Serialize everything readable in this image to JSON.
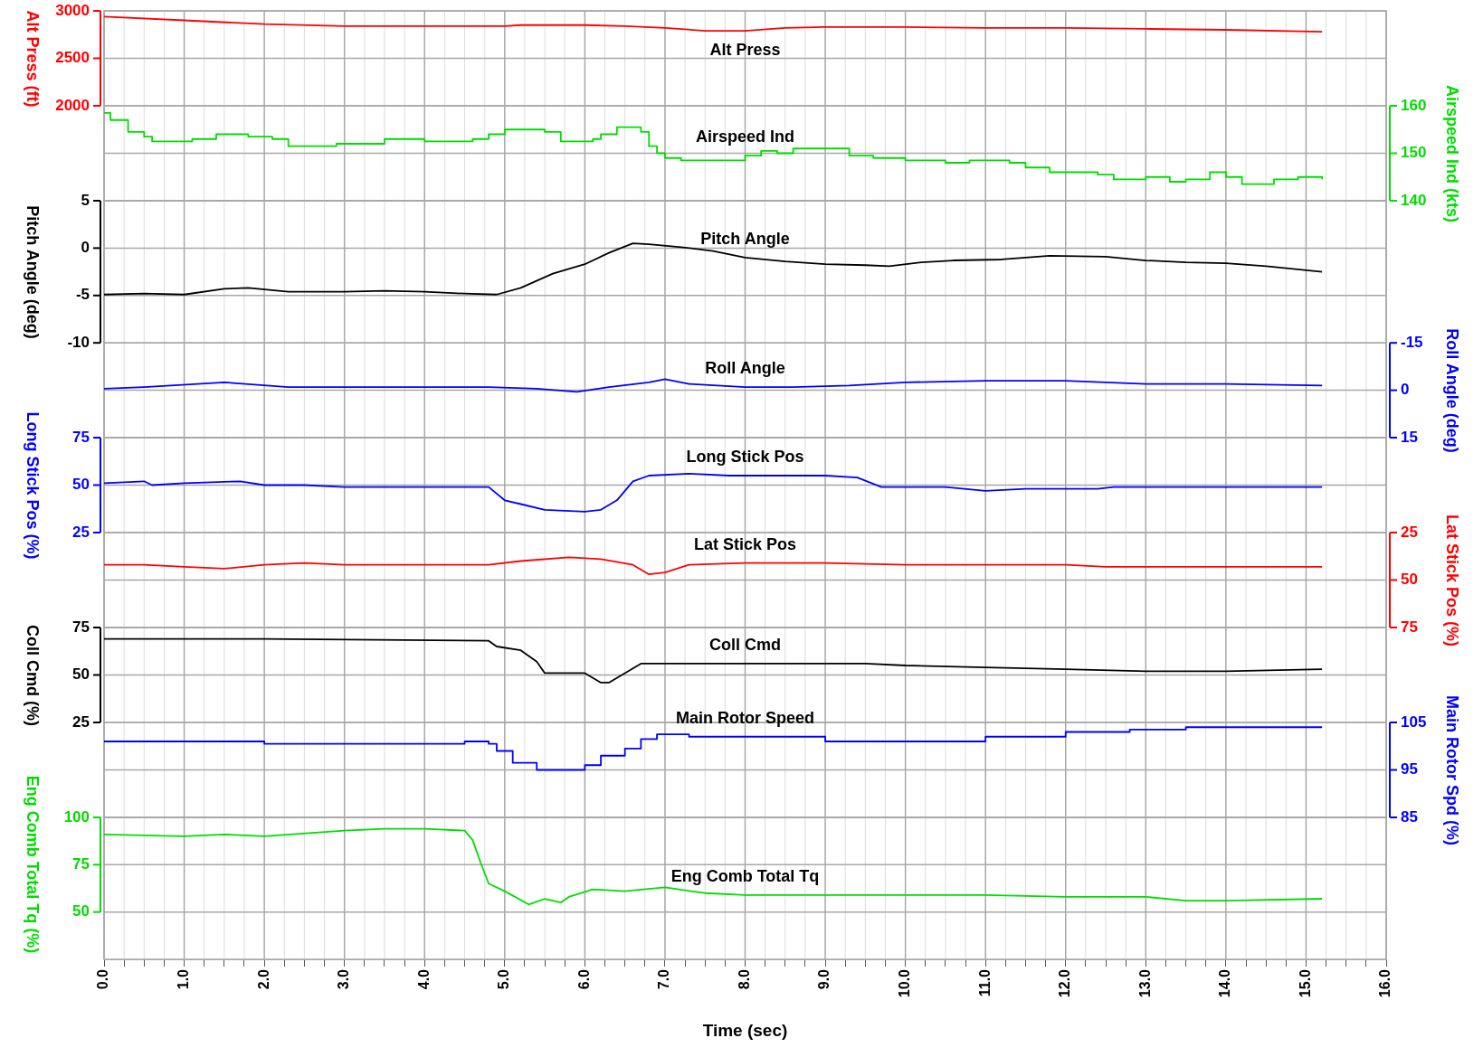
{
  "chart_data": [
    {
      "type": "line",
      "grid": true,
      "marker": "none",
      "tick_labels": "y",
      "xlim": [
        0,
        16
      ],
      "xticks": [
        0,
        0.25,
        0.5,
        0.75,
        1,
        1.25,
        1.5,
        1.75,
        2,
        2.25,
        2.5,
        2.75,
        3,
        3.25,
        3.5,
        3.75,
        4,
        4.25,
        4.5,
        4.75,
        5,
        5.25,
        5.5,
        5.75,
        6,
        6.25,
        6.5,
        6.75,
        7,
        7.25,
        7.5,
        7.75,
        8,
        8.25,
        8.5,
        8.75,
        9,
        9.25,
        9.5,
        9.75,
        10,
        10.25,
        10.5,
        10.75,
        11,
        11.25,
        11.5,
        11.75,
        12,
        12.25,
        12.5,
        12.75,
        13,
        13.25,
        13.5,
        13.75,
        14,
        14.25,
        14.5,
        14.75,
        15,
        15.25,
        15.5,
        15.75,
        16
      ],
      "ylabel": "Alt Press (ft)",
      "ylim": [
        1000,
        3000
      ],
      "yticks": [
        2000,
        2500,
        3000
      ],
      "y2label": "Airspeed Ind (kts)",
      "y2lim": [
        140,
        180
      ],
      "y2ticks": [
        140,
        150,
        160
      ],
      "series": [
        {
          "name": "Alt Press",
          "color": "#ff0000",
          "x": [
            0,
            1,
            2,
            3,
            4,
            5,
            5.2,
            6,
            6.5,
            7,
            7.5,
            8,
            8.5,
            9,
            10,
            11,
            12,
            13,
            14,
            15.2
          ],
          "values": [
            2940,
            2900,
            2860,
            2840,
            2840,
            2840,
            2850,
            2850,
            2840,
            2820,
            2790,
            2790,
            2820,
            2830,
            2830,
            2820,
            2820,
            2810,
            2800,
            2780
          ]
        },
        {
          "name": "Airspeed Ind",
          "color": "#00dd00",
          "axis": "y2",
          "type": "step",
          "x": [
            0,
            0.08,
            0.3,
            0.5,
            0.6,
            1.1,
            1.4,
            1.8,
            2.1,
            2.3,
            2.9,
            3.5,
            4,
            4.6,
            4.8,
            5,
            5.5,
            5.7,
            6.1,
            6.2,
            6.4,
            6.7,
            6.8,
            6.9,
            7,
            7.2,
            8,
            8.2,
            8.4,
            8.6,
            9.3,
            9.6,
            10,
            10.5,
            10.8,
            11.3,
            11.5,
            11.8,
            12,
            12.4,
            12.6,
            13,
            13.3,
            13.5,
            13.8,
            14,
            14.2,
            14.6,
            14.9,
            15.2
          ],
          "values": [
            158.5,
            157,
            154.5,
            153.5,
            152.5,
            153,
            154,
            153.5,
            153,
            151.5,
            152,
            153,
            152.5,
            153,
            154,
            155,
            154.5,
            152.5,
            153,
            154,
            155.5,
            154.5,
            151.5,
            150,
            149,
            148.5,
            149.5,
            150.5,
            150,
            151,
            149.5,
            149,
            148.5,
            148,
            148.5,
            148,
            147,
            146,
            146,
            145.5,
            144.5,
            145,
            144,
            144.5,
            146,
            145,
            143.5,
            144.5,
            145,
            144.5
          ]
        }
      ]
    },
    {
      "type": "line",
      "grid": true,
      "marker": "none",
      "tick_labels": "y",
      "xlim": [
        0,
        16
      ],
      "xticks": [
        0,
        0.25,
        0.5,
        0.75,
        1,
        1.25,
        1.5,
        1.75,
        2,
        2.25,
        2.5,
        2.75,
        3,
        3.25,
        3.5,
        3.75,
        4,
        4.25,
        4.5,
        4.75,
        5,
        5.25,
        5.5,
        5.75,
        6,
        6.25,
        6.5,
        6.75,
        7,
        7.25,
        7.5,
        7.75,
        8,
        8.25,
        8.5,
        8.75,
        9,
        9.25,
        9.5,
        9.75,
        10,
        10.25,
        10.5,
        10.75,
        11,
        11.25,
        11.5,
        11.75,
        12,
        12.25,
        12.5,
        12.75,
        13,
        13.25,
        13.5,
        13.75,
        14,
        14.25,
        14.5,
        14.75,
        15,
        15.25,
        15.5,
        15.75,
        16
      ],
      "ylabel": "Pitch Angle (deg)",
      "ylim": [
        -20,
        5
      ],
      "yticks": [
        -10,
        -5,
        0,
        5
      ],
      "y2label": "Roll Angle (deg)",
      "y2lim": [
        15,
        -60
      ],
      "y2ticks": [
        -15,
        0,
        15
      ],
      "series": [
        {
          "name": "Pitch Angle",
          "color": "#000000",
          "x": [
            0,
            0.5,
            1,
            1.5,
            1.8,
            2.3,
            3,
            3.5,
            4,
            4.5,
            4.9,
            5.2,
            5.6,
            6,
            6.3,
            6.6,
            6.8,
            7.2,
            7.6,
            8,
            8.5,
            9,
            9.5,
            9.8,
            10.2,
            10.6,
            11.2,
            11.8,
            12.5,
            13,
            13.5,
            14,
            14.5,
            15.2
          ],
          "values": [
            -4.9,
            -4.8,
            -4.9,
            -4.3,
            -4.2,
            -4.6,
            -4.6,
            -4.5,
            -4.6,
            -4.8,
            -4.9,
            -4.2,
            -2.7,
            -1.7,
            -0.5,
            0.5,
            0.4,
            0.1,
            -0.3,
            -1,
            -1.4,
            -1.7,
            -1.8,
            -1.9,
            -1.5,
            -1.3,
            -1.2,
            -0.8,
            -0.9,
            -1.3,
            -1.5,
            -1.6,
            -1.9,
            -2.5
          ]
        },
        {
          "name": "Roll Angle",
          "color": "#0000ff",
          "axis": "y2",
          "x": [
            0,
            0.5,
            1.5,
            2.3,
            3,
            4,
            4.8,
            5.4,
            5.9,
            6.3,
            6.8,
            7,
            7.3,
            8,
            8.6,
            9.3,
            10,
            11,
            12,
            13,
            14,
            15.2
          ],
          "values": [
            -0.5,
            -1,
            -2.5,
            -1,
            -1,
            -1,
            -1,
            -0.5,
            0.5,
            -1,
            -2.5,
            -3.5,
            -2,
            -1,
            -1,
            -1.5,
            -2.5,
            -3,
            -3,
            -2,
            -2,
            -1.5
          ]
        }
      ]
    },
    {
      "type": "line",
      "grid": true,
      "marker": "none",
      "tick_labels": "y",
      "xlim": [
        0,
        16
      ],
      "xticks": [
        0,
        0.25,
        0.5,
        0.75,
        1,
        1.25,
        1.5,
        1.75,
        2,
        2.25,
        2.5,
        2.75,
        3,
        3.25,
        3.5,
        3.75,
        4,
        4.25,
        4.5,
        4.75,
        5,
        5.25,
        5.5,
        5.75,
        6,
        6.25,
        6.5,
        6.75,
        7,
        7.25,
        7.5,
        7.75,
        8,
        8.25,
        8.5,
        8.75,
        9,
        9.25,
        9.5,
        9.75,
        10,
        10.25,
        10.5,
        10.75,
        11,
        11.25,
        11.5,
        11.75,
        12,
        12.25,
        12.5,
        12.75,
        13,
        13.25,
        13.5,
        13.75,
        14,
        14.25,
        14.5,
        14.75,
        15,
        15.25,
        15.5,
        15.75,
        16
      ],
      "ylabel": "Long Stick Pos (%)",
      "ylim": [
        -25,
        75
      ],
      "yticks": [
        25,
        50,
        75
      ],
      "y2label": "Lat Stick Pos (%)",
      "y2lim": [
        75,
        -25
      ],
      "y2ticks": [
        25,
        50,
        75
      ],
      "series": [
        {
          "name": "Long Stick Pos",
          "color": "#0000ff",
          "x": [
            0,
            0.5,
            0.6,
            1,
            1.7,
            2,
            2.5,
            3,
            3.5,
            4,
            4.8,
            5,
            5.2,
            5.5,
            6,
            6.2,
            6.4,
            6.6,
            6.8,
            7.3,
            7.8,
            8.5,
            9,
            9.4,
            9.7,
            10.5,
            11,
            11.5,
            12.4,
            12.6,
            13,
            14,
            15.2
          ],
          "values": [
            51,
            52,
            50,
            51,
            52,
            50,
            50,
            49,
            49,
            49,
            49,
            42,
            40,
            37,
            36,
            37,
            42,
            52,
            55,
            56,
            55,
            55,
            55,
            54,
            49,
            49,
            47,
            48,
            48,
            49,
            49,
            49,
            49
          ]
        },
        {
          "name": "Lat Stick Pos",
          "color": "#ff0000",
          "axis": "y2",
          "x": [
            0,
            0.5,
            1,
            1.5,
            2,
            2.5,
            3,
            4,
            4.8,
            5.2,
            5.8,
            6.2,
            6.6,
            6.8,
            7,
            7.3,
            8,
            9,
            10,
            11,
            12,
            12.5,
            13,
            14,
            15.2
          ],
          "values": [
            42,
            42,
            43,
            44,
            42,
            41,
            42,
            42,
            42,
            40,
            38,
            39,
            42,
            47,
            46,
            42,
            41,
            41,
            42,
            42,
            42,
            43,
            43,
            43,
            43
          ]
        }
      ]
    },
    {
      "type": "line",
      "grid": true,
      "marker": "none",
      "tick_labels": "y",
      "xlim": [
        0,
        16
      ],
      "xticks": [
        0,
        0.25,
        0.5,
        0.75,
        1,
        1.25,
        1.5,
        1.75,
        2,
        2.25,
        2.5,
        2.75,
        3,
        3.25,
        3.5,
        3.75,
        4,
        4.25,
        4.5,
        4.75,
        5,
        5.25,
        5.5,
        5.75,
        6,
        6.25,
        6.5,
        6.75,
        7,
        7.25,
        7.5,
        7.75,
        8,
        8.25,
        8.5,
        8.75,
        9,
        9.25,
        9.5,
        9.75,
        10,
        10.25,
        10.5,
        10.75,
        11,
        11.25,
        11.5,
        11.75,
        12,
        12.25,
        12.5,
        12.75,
        13,
        13.25,
        13.5,
        13.75,
        14,
        14.25,
        14.5,
        14.75,
        15,
        15.25,
        15.5,
        15.75,
        16
      ],
      "ylabel": "Coll Cmd (%)",
      "ylim": [
        -25,
        75
      ],
      "yticks": [
        25,
        50,
        75
      ],
      "y2label": "Main Rotor Spd (%)",
      "y2lim": [
        85,
        125
      ],
      "y2ticks": [
        85,
        95,
        105
      ],
      "series": [
        {
          "name": "Coll Cmd",
          "color": "#000000",
          "x": [
            0,
            2,
            4.8,
            4.9,
            5.2,
            5.4,
            5.5,
            6,
            6.2,
            6.3,
            6.5,
            6.7,
            7,
            8,
            8.5,
            9.5,
            10,
            11,
            12,
            13,
            14,
            15.2
          ],
          "values": [
            69,
            69,
            68,
            65,
            63,
            57,
            51,
            51,
            46,
            46,
            51,
            56,
            56,
            56,
            56,
            56,
            55,
            54,
            53,
            52,
            52,
            53
          ]
        },
        {
          "name": "Main Rotor Speed",
          "color": "#0000ff",
          "axis": "y2",
          "type": "step",
          "x": [
            0,
            2,
            3,
            4.5,
            4.8,
            4.9,
            5.1,
            5.4,
            5.9,
            6,
            6.2,
            6.5,
            6.7,
            6.9,
            7.3,
            8,
            9,
            10,
            11,
            12,
            12.8,
            13.5,
            15.2
          ],
          "values": [
            101,
            100.5,
            100.5,
            101,
            100.5,
            99,
            96.5,
            95,
            95,
            96,
            98,
            99.5,
            101.5,
            102.5,
            102,
            102,
            101,
            101,
            102,
            103,
            103.5,
            104,
            104
          ]
        }
      ]
    },
    {
      "type": "line",
      "grid": true,
      "marker": "none",
      "xlabel": "Time (sec)",
      "xlim": [
        0,
        16
      ],
      "xticks": [
        {
          "value": 0,
          "label": "0.0"
        },
        {
          "value": 0.25,
          "label": null
        },
        {
          "value": 0.5,
          "label": null
        },
        {
          "value": 0.75,
          "label": null
        },
        {
          "value": 1,
          "label": "1.0"
        },
        {
          "value": 1.25,
          "label": null
        },
        {
          "value": 1.5,
          "label": null
        },
        {
          "value": 1.75,
          "label": null
        },
        {
          "value": 2,
          "label": "2.0"
        },
        {
          "value": 2.25,
          "label": null
        },
        {
          "value": 2.5,
          "label": null
        },
        {
          "value": 2.75,
          "label": null
        },
        {
          "value": 3,
          "label": "3.0"
        },
        {
          "value": 3.25,
          "label": null
        },
        {
          "value": 3.5,
          "label": null
        },
        {
          "value": 3.75,
          "label": null
        },
        {
          "value": 4,
          "label": "4.0"
        },
        {
          "value": 4.25,
          "label": null
        },
        {
          "value": 4.5,
          "label": null
        },
        {
          "value": 4.75,
          "label": null
        },
        {
          "value": 5,
          "label": "5.0"
        },
        {
          "value": 5.25,
          "label": null
        },
        {
          "value": 5.5,
          "label": null
        },
        {
          "value": 5.75,
          "label": null
        },
        {
          "value": 6,
          "label": "6.0"
        },
        {
          "value": 6.25,
          "label": null
        },
        {
          "value": 6.5,
          "label": null
        },
        {
          "value": 6.75,
          "label": null
        },
        {
          "value": 7,
          "label": "7.0"
        },
        {
          "value": 7.25,
          "label": null
        },
        {
          "value": 7.5,
          "label": null
        },
        {
          "value": 7.75,
          "label": null
        },
        {
          "value": 8,
          "label": "8.0"
        },
        {
          "value": 8.25,
          "label": null
        },
        {
          "value": 8.5,
          "label": null
        },
        {
          "value": 8.75,
          "label": null
        },
        {
          "value": 9,
          "label": "9.0"
        },
        {
          "value": 9.25,
          "label": null
        },
        {
          "value": 9.5,
          "label": null
        },
        {
          "value": 9.75,
          "label": null
        },
        {
          "value": 10,
          "label": "10.0"
        },
        {
          "value": 10.25,
          "label": null
        },
        {
          "value": 10.5,
          "label": null
        },
        {
          "value": 10.75,
          "label": null
        },
        {
          "value": 11,
          "label": "11.0"
        },
        {
          "value": 11.25,
          "label": null
        },
        {
          "value": 11.5,
          "label": null
        },
        {
          "value": 11.75,
          "label": null
        },
        {
          "value": 12,
          "label": "12.0"
        },
        {
          "value": 12.25,
          "label": null
        },
        {
          "value": 12.5,
          "label": null
        },
        {
          "value": 12.75,
          "label": null
        },
        {
          "value": 13,
          "label": "13.0"
        },
        {
          "value": 13.25,
          "label": null
        },
        {
          "value": 13.5,
          "label": null
        },
        {
          "value": 13.75,
          "label": null
        },
        {
          "value": 14,
          "label": "14.0"
        },
        {
          "value": 14.25,
          "label": null
        },
        {
          "value": 14.5,
          "label": null
        },
        {
          "value": 14.75,
          "label": null
        },
        {
          "value": 15,
          "label": "15.0"
        },
        {
          "value": 15.25,
          "label": null
        },
        {
          "value": 15.5,
          "label": null
        },
        {
          "value": 15.75,
          "label": null
        },
        {
          "value": 16,
          "label": "16.0"
        }
      ],
      "ylabel": "Eng Comb Total Tq (%)",
      "ylim": [
        25,
        100
      ],
      "yticks": [
        50,
        75,
        100
      ],
      "series": [
        {
          "name": "Eng Comb Total Tq",
          "color": "#00dd00",
          "x": [
            0,
            1,
            1.5,
            2,
            3,
            3.5,
            4,
            4.5,
            4.6,
            4.7,
            4.8,
            5,
            5.3,
            5.5,
            5.7,
            5.8,
            6.1,
            6.5,
            7,
            7.5,
            8,
            9,
            10,
            11,
            12,
            13,
            13.5,
            14,
            15.2
          ],
          "values": [
            91,
            90,
            91,
            90,
            93,
            94,
            94,
            93,
            88,
            76,
            65,
            61,
            54,
            57,
            55,
            58,
            62,
            61,
            63,
            60,
            59,
            59,
            59,
            59,
            58,
            58,
            56,
            56,
            57
          ]
        }
      ]
    }
  ]
}
